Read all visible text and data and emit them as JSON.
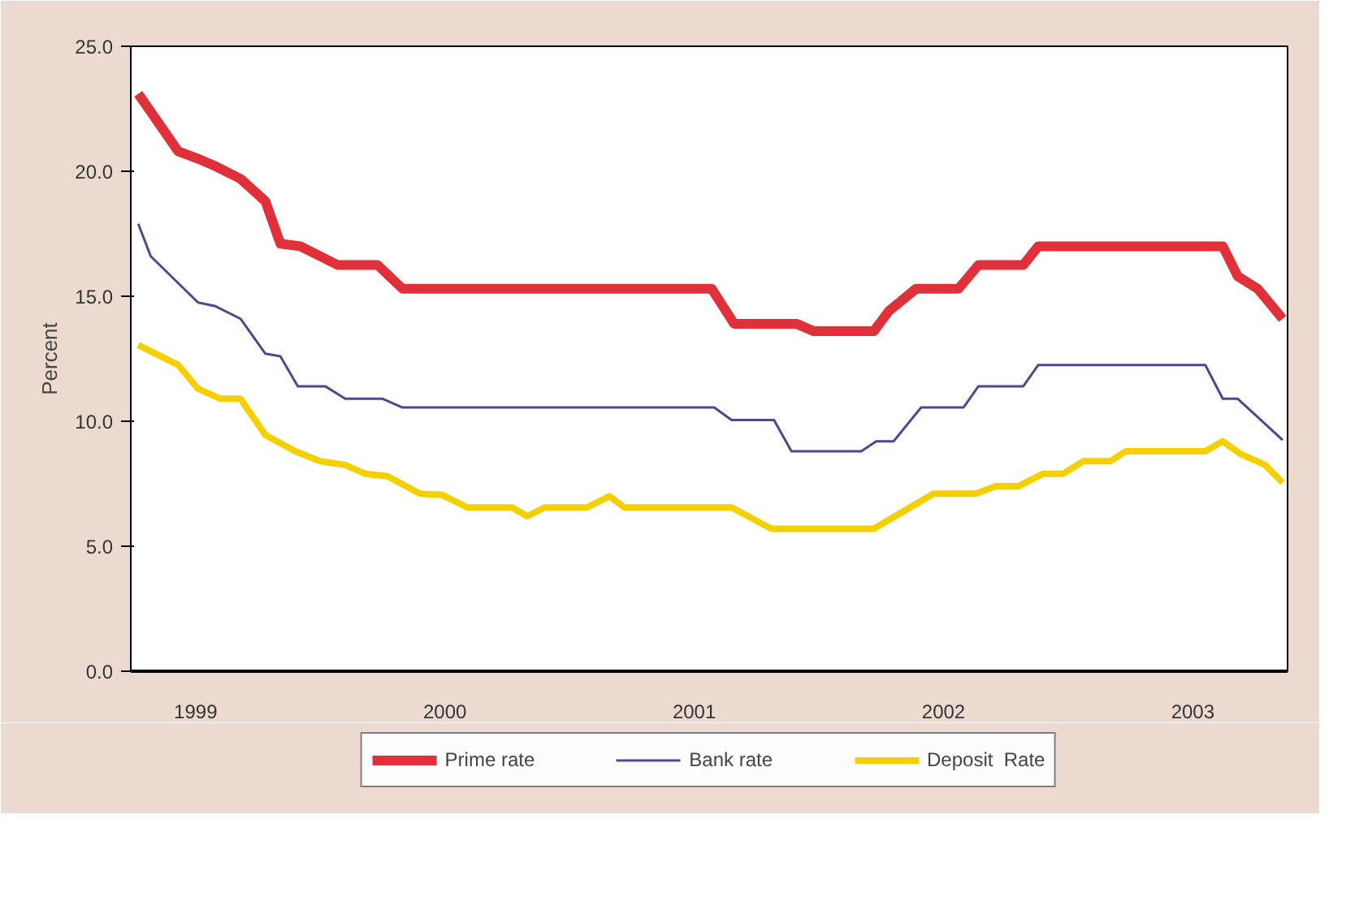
{
  "chart_data": {
    "type": "line",
    "ylabel": "Percent",
    "xlim": [
      1998.74,
      2003.38
    ],
    "ylim": [
      0,
      25
    ],
    "xticks": [
      1999,
      2000,
      2001,
      2002,
      2003
    ],
    "yticks": [
      {
        "value": 0,
        "label": "0.0"
      },
      {
        "value": 5,
        "label": "5.0"
      },
      {
        "value": 10,
        "label": "10.0"
      },
      {
        "value": 15,
        "label": "15.0"
      },
      {
        "value": 20,
        "label": "20.0"
      },
      {
        "value": 25,
        "label": "25.0"
      }
    ],
    "grid": false,
    "legend": "bottom",
    "marker": "none",
    "line_style": "solid",
    "series": [
      {
        "name": "Prime rate",
        "color": "#e0303a",
        "x": [
          1998.77,
          1998.93,
          1999.01,
          1999.08,
          1999.18,
          1999.28,
          1999.34,
          1999.42,
          1999.57,
          1999.73,
          1999.83,
          2001.07,
          2001.16,
          2001.41,
          2001.48,
          2001.72,
          2001.78,
          2001.89,
          2002.06,
          2002.14,
          2002.32,
          2002.38,
          2003.12,
          2003.18,
          2003.26,
          2003.36
        ],
        "values": [
          23.1,
          20.8,
          20.5,
          20.2,
          19.7,
          18.8,
          17.1,
          17.0,
          16.25,
          16.25,
          15.3,
          15.3,
          13.9,
          13.9,
          13.6,
          13.6,
          14.4,
          15.3,
          15.3,
          16.25,
          16.25,
          17.0,
          17.0,
          15.8,
          15.3,
          14.1
        ]
      },
      {
        "name": "Bank rate",
        "color": "#4a4a8c",
        "x": [
          1998.77,
          1998.82,
          1999.01,
          1999.08,
          1999.18,
          1999.28,
          1999.34,
          1999.41,
          1999.52,
          1999.6,
          1999.75,
          1999.83,
          2001.08,
          2001.15,
          2001.32,
          2001.39,
          2001.67,
          2001.73,
          2001.8,
          2001.91,
          2002.08,
          2002.14,
          2002.32,
          2002.38,
          2003.05,
          2003.12,
          2003.18,
          2003.36
        ],
        "values": [
          17.9,
          16.6,
          14.75,
          14.6,
          14.1,
          12.7,
          12.6,
          11.4,
          11.4,
          10.9,
          10.9,
          10.55,
          10.55,
          10.05,
          10.05,
          8.8,
          8.8,
          9.2,
          9.2,
          10.55,
          10.55,
          11.4,
          11.4,
          12.25,
          12.25,
          10.9,
          10.9,
          9.25
        ]
      },
      {
        "name": "Deposit  Rate",
        "color": "#f5d000",
        "x": [
          1998.77,
          1998.93,
          1999.01,
          1999.1,
          1999.18,
          1999.28,
          1999.4,
          1999.5,
          1999.6,
          1999.68,
          1999.77,
          1999.9,
          1999.99,
          2000.09,
          2000.27,
          2000.33,
          2000.4,
          2000.57,
          2000.66,
          2000.72,
          2001.15,
          2001.31,
          2001.72,
          2001.96,
          2002.13,
          2002.21,
          2002.3,
          2002.4,
          2002.48,
          2002.56,
          2002.67,
          2002.73,
          2003.05,
          2003.12,
          2003.19,
          2003.29,
          2003.36
        ],
        "values": [
          13.05,
          12.25,
          11.3,
          10.9,
          10.9,
          9.45,
          8.8,
          8.4,
          8.25,
          7.9,
          7.8,
          7.1,
          7.05,
          6.55,
          6.55,
          6.2,
          6.55,
          6.55,
          7.0,
          6.55,
          6.55,
          5.7,
          5.7,
          7.1,
          7.1,
          7.4,
          7.4,
          7.9,
          7.9,
          8.4,
          8.4,
          8.8,
          8.8,
          9.2,
          8.7,
          8.25,
          7.55
        ]
      }
    ]
  }
}
